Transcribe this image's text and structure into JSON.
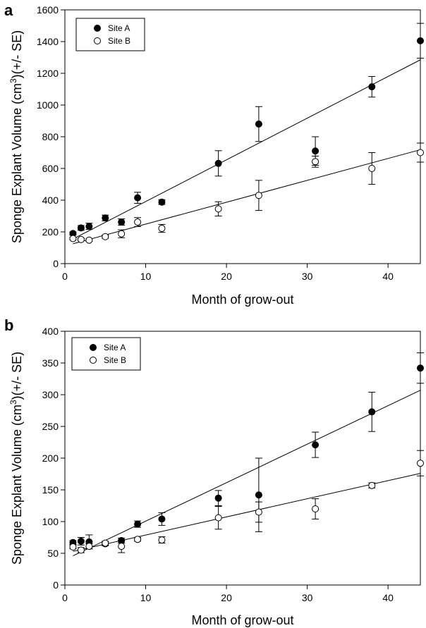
{
  "chart_data": [
    {
      "panel": "a",
      "type": "scatter",
      "xlabel": "Month of grow-out",
      "ylabel": "Sponge Explant Volume (cm3)(+/- SE)",
      "ylabel_parts": [
        "Sponge Explant Volume (cm",
        "3",
        ")(+/- SE)"
      ],
      "xlim": [
        0,
        44
      ],
      "ylim": [
        0,
        1600
      ],
      "xticks": [
        0,
        10,
        20,
        30,
        40
      ],
      "yticks": [
        0,
        200,
        400,
        600,
        800,
        1000,
        1200,
        1400,
        1600
      ],
      "legend_position": "top-left",
      "series": [
        {
          "name": "Site A",
          "marker": "filled-circle",
          "x": [
            1,
            2,
            3,
            5,
            7,
            9,
            12,
            19,
            24,
            31,
            38,
            44
          ],
          "y": [
            190,
            225,
            235,
            288,
            262,
            415,
            388,
            632,
            880,
            710,
            1115,
            1405
          ],
          "se": [
            10,
            15,
            20,
            18,
            20,
            35,
            15,
            80,
            110,
            90,
            65,
            110
          ],
          "fit": {
            "x": [
              1,
              44
            ],
            "y": [
              155,
              1285
            ]
          }
        },
        {
          "name": "Site B",
          "marker": "open-circle",
          "x": [
            1,
            2,
            3,
            5,
            7,
            9,
            12,
            19,
            24,
            31,
            38,
            44
          ],
          "y": [
            158,
            152,
            148,
            170,
            188,
            262,
            222,
            345,
            430,
            643,
            600,
            700
          ],
          "se": [
            8,
            8,
            8,
            10,
            25,
            28,
            25,
            45,
            95,
            35,
            100,
            60
          ],
          "fit": {
            "x": [
              1,
              44
            ],
            "y": [
              125,
              718
            ]
          }
        }
      ]
    },
    {
      "panel": "b",
      "type": "scatter",
      "xlabel": "Month of grow-out",
      "ylabel": "Sponge Explant Volume (cm3)(+/- SE)",
      "ylabel_parts": [
        "Sponge Explant Volume (cm",
        "3",
        ")(+/- SE)"
      ],
      "xlim": [
        0,
        44
      ],
      "ylim": [
        0,
        400
      ],
      "xticks": [
        0,
        10,
        20,
        30,
        40
      ],
      "yticks": [
        0,
        50,
        100,
        150,
        200,
        250,
        300,
        350,
        400
      ],
      "legend_position": "top-left",
      "series": [
        {
          "name": "Site A",
          "marker": "filled-circle",
          "x": [
            1,
            2,
            3,
            5,
            7,
            9,
            12,
            19,
            24,
            31,
            38,
            44
          ],
          "y": [
            67,
            69,
            68,
            65,
            70,
            96,
            104,
            137,
            142,
            221,
            273,
            342
          ],
          "se": [
            3,
            6,
            11,
            3,
            4,
            5,
            10,
            12,
            58,
            20,
            31,
            24
          ],
          "fit": {
            "x": [
              1,
              44
            ],
            "y": [
              46,
              307
            ]
          }
        },
        {
          "name": "Site B",
          "marker": "open-circle",
          "x": [
            1,
            2,
            3,
            5,
            7,
            9,
            12,
            19,
            24,
            31,
            38,
            44
          ],
          "y": [
            60,
            55,
            61,
            66,
            61,
            72,
            71,
            106,
            115,
            120,
            157,
            192
          ],
          "se": [
            3,
            4,
            4,
            3,
            10,
            3,
            5,
            18,
            16,
            16,
            4,
            20
          ],
          "fit": {
            "x": [
              1,
              44
            ],
            "y": [
              53,
              176
            ]
          }
        }
      ]
    }
  ]
}
